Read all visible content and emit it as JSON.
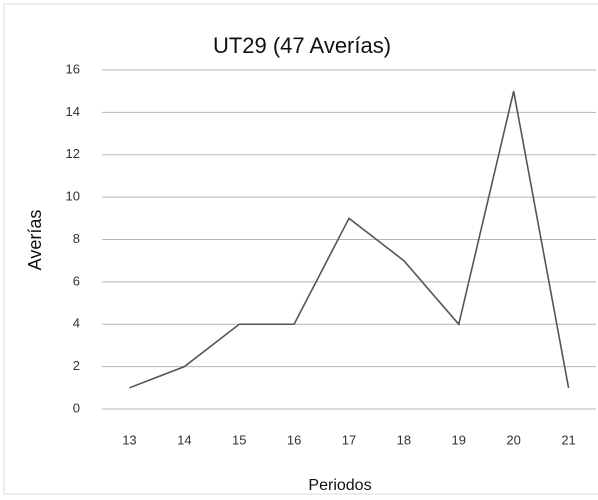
{
  "chart_data": {
    "type": "line",
    "title": "UT29 (47 Averías)",
    "x_label": "Periodos",
    "y_label": "Averías",
    "categories": [
      "13",
      "14",
      "15",
      "16",
      "17",
      "18",
      "19",
      "20",
      "21"
    ],
    "values": [
      1,
      2,
      4,
      4,
      9,
      7,
      4,
      15,
      1
    ],
    "color": "#555555",
    "ylim": [
      0,
      16
    ],
    "yticks": [
      0,
      2,
      4,
      6,
      8,
      10,
      12,
      14,
      16
    ],
    "grid": true
  }
}
